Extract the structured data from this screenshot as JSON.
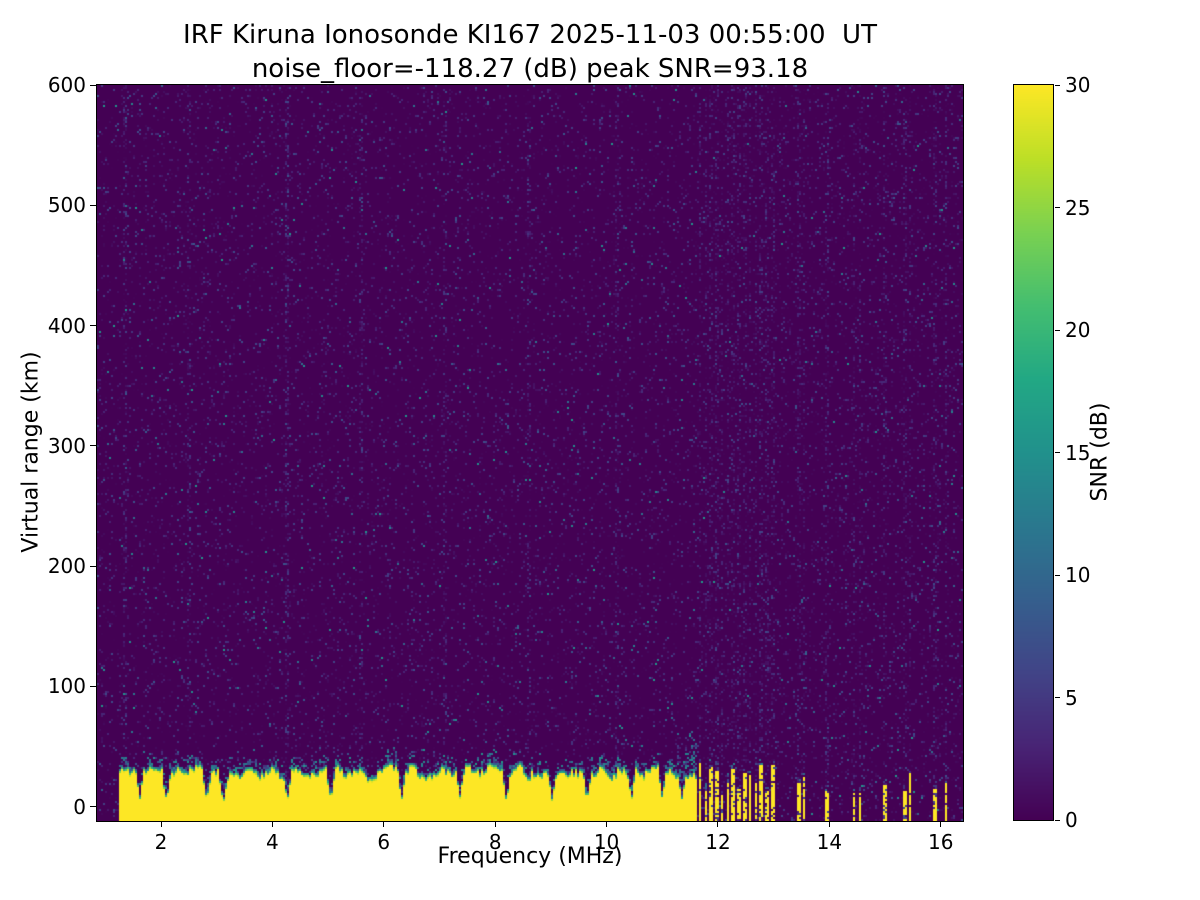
{
  "chart_data": {
    "type": "heatmap",
    "title": "IRF Kiruna Ionosonde KI167 2025-11-03 00:55:00  UT",
    "subtitle": "noise_floor=-118.27 (dB) peak SNR=93.18",
    "station": "IRF Kiruna Ionosonde KI167",
    "timestamp_ut": "2025-11-03 00:55:00",
    "noise_floor_db": -118.27,
    "peak_snr_db": 93.18,
    "xlabel": "Frequency (MHz)",
    "ylabel": "Virtual range (km)",
    "xlim": [
      0.85,
      16.4
    ],
    "ylim": [
      -12,
      600
    ],
    "xticks": [
      2,
      4,
      6,
      8,
      10,
      12,
      14,
      16
    ],
    "yticks": [
      0,
      100,
      200,
      300,
      400,
      500,
      600
    ],
    "grid": false,
    "colorbar": {
      "label": "SNR (dB)",
      "min": 0,
      "max": 30,
      "ticks": [
        0,
        5,
        10,
        15,
        20,
        25,
        30
      ],
      "colormap": "viridis"
    },
    "features": {
      "background_db": 0,
      "speckle_max_db": 9,
      "ground_echo_band": {
        "freq_start": 1.25,
        "freq_end": 11.62,
        "mean_top_km": 31,
        "top_jitter_km": 10,
        "value_db": 30
      },
      "band_notch_freqs": [
        1.62,
        2.1,
        2.82,
        3.12,
        4.27,
        5.05,
        6.32,
        7.37,
        8.2,
        9.02,
        9.65,
        10.45,
        11.0,
        11.35
      ],
      "noise_streak_freqs": [
        1.35,
        2.5,
        4.25,
        5.6,
        7.1,
        8.6,
        10.2
      ],
      "fringe_plume_range_mhz": [
        11.25,
        11.62
      ],
      "dense_stripes": {
        "freq_start": 11.68,
        "freq_end": 13.05,
        "spacing": 0.1,
        "max_top_km": 36
      },
      "sparse_stripe_freqs": [
        13.45,
        13.55,
        13.95,
        14.45,
        14.55,
        15.0,
        15.35,
        15.45,
        15.9,
        16.1
      ]
    }
  }
}
